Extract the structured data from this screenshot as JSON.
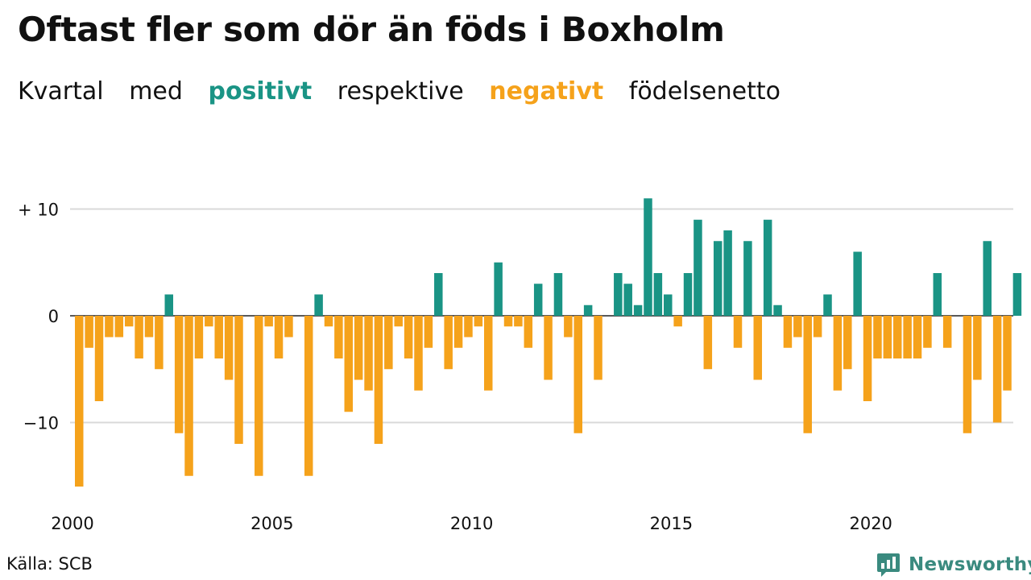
{
  "title": "Oftast fler som dör än föds i Boxholm",
  "subtitle": {
    "part1": "Kvartal",
    "part2": "med",
    "positive": "positivt",
    "part3": "respektive",
    "negative": "negativt",
    "part4": "födelsenetto"
  },
  "source": "Källa: SCB",
  "brand": "Newsworthy",
  "colors": {
    "positive": "#1a9485",
    "negative": "#f5a21b",
    "grid": "#d9d9d9",
    "axis": "#222222"
  },
  "chart_data": {
    "type": "bar",
    "x_start": "2000 Q1",
    "x_tick_labels": [
      "2000",
      "2005",
      "2010",
      "2015",
      "2020"
    ],
    "y_tick_labels": [
      "+ 10",
      "0",
      "−10"
    ],
    "y_ticks": [
      10,
      0,
      -10
    ],
    "ylim": [
      -17,
      13
    ],
    "grid": true,
    "values": [
      -16,
      -3,
      -8,
      -2,
      -2,
      -1,
      -4,
      -2,
      -5,
      2,
      -11,
      -15,
      -4,
      -1,
      -4,
      -6,
      -12,
      0,
      -15,
      -1,
      -4,
      -2,
      0,
      -15,
      2,
      -1,
      -4,
      -9,
      -6,
      -7,
      -12,
      -5,
      -1,
      -4,
      -7,
      -3,
      4,
      -5,
      -3,
      -2,
      -1,
      -7,
      5,
      -1,
      -1,
      -3,
      3,
      -6,
      4,
      -2,
      -11,
      1,
      -6,
      0,
      4,
      3,
      1,
      11,
      4,
      2,
      -1,
      4,
      9,
      -5,
      7,
      8,
      -3,
      7,
      -6,
      9,
      1,
      -3,
      -2,
      -11,
      -2,
      2,
      -7,
      -5,
      6,
      -8,
      -4,
      -4,
      -4,
      -4,
      -4,
      -3,
      4,
      -3,
      0,
      -11,
      -6,
      7,
      -10,
      -7,
      4
    ]
  }
}
